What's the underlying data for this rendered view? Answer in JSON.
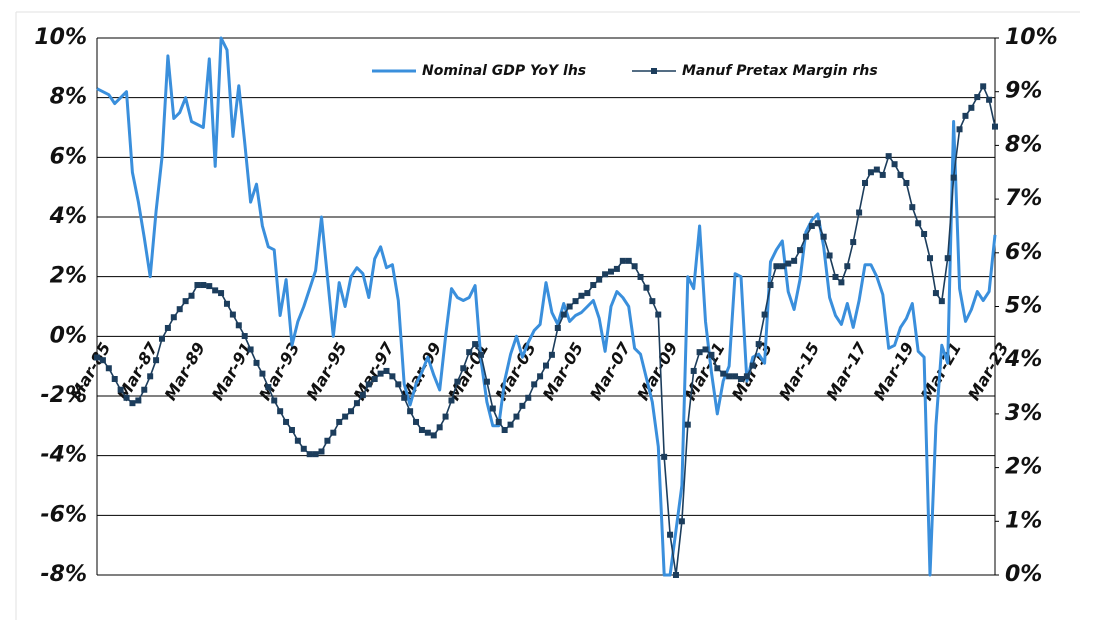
{
  "chart_data": {
    "type": "line",
    "categories": [
      "Mar-85",
      null,
      null,
      null,
      null,
      null,
      null,
      null,
      "Mar-87",
      null,
      null,
      null,
      null,
      null,
      null,
      null,
      "Mar-89",
      null,
      null,
      null,
      null,
      null,
      null,
      null,
      "Mar-91",
      null,
      null,
      null,
      null,
      null,
      null,
      null,
      "Mar-93",
      null,
      null,
      null,
      null,
      null,
      null,
      null,
      "Mar-95",
      null,
      null,
      null,
      null,
      null,
      null,
      null,
      "Mar-97",
      null,
      null,
      null,
      null,
      null,
      null,
      null,
      "Mar-99",
      null,
      null,
      null,
      null,
      null,
      null,
      null,
      "Mar-01",
      null,
      null,
      null,
      null,
      null,
      null,
      null,
      "Mar-03",
      null,
      null,
      null,
      null,
      null,
      null,
      null,
      "Mar-05",
      null,
      null,
      null,
      null,
      null,
      null,
      null,
      "Mar-07",
      null,
      null,
      null,
      null,
      null,
      null,
      null,
      "Mar-09",
      null,
      null,
      null,
      null,
      null,
      null,
      null,
      "Mar-11",
      null,
      null,
      null,
      null,
      null,
      null,
      null,
      "Mar-13",
      null,
      null,
      null,
      null,
      null,
      null,
      null,
      "Mar-15",
      null,
      null,
      null,
      null,
      null,
      null,
      null,
      "Mar-17",
      null,
      null,
      null,
      null,
      null,
      null,
      null,
      "Mar-19",
      null,
      null,
      null,
      null,
      null,
      null,
      null,
      "Mar-21",
      null,
      null,
      null,
      null,
      null,
      null,
      null,
      "Mar-23"
    ],
    "series": [
      {
        "name": "Nominal GDP YoY lhs",
        "color": "#3a8fdc",
        "axis": "y",
        "values": [
          8.3,
          8.2,
          8.1,
          7.8,
          8.0,
          8.2,
          5.5,
          4.5,
          3.3,
          2.0,
          4.2,
          6.0,
          9.4,
          7.3,
          7.5,
          8.0,
          7.2,
          7.1,
          7.0,
          9.3,
          5.7,
          10.0,
          9.6,
          6.7,
          8.4,
          6.5,
          4.5,
          5.1,
          3.7,
          3.0,
          2.9,
          0.7,
          1.9,
          -0.3,
          0.5,
          1.0,
          1.6,
          2.2,
          4.0,
          2.0,
          0.0,
          1.8,
          1.0,
          2.0,
          2.3,
          2.1,
          1.3,
          2.6,
          3.0,
          2.3,
          2.4,
          1.2,
          -1.6,
          -2.3,
          -1.6,
          -1.2,
          -0.7,
          -1.3,
          -1.8,
          0.0,
          1.6,
          1.3,
          1.2,
          1.3,
          1.7,
          -0.8,
          -2.2,
          -3.0,
          -3.0,
          -1.5,
          -0.6,
          0.0,
          -0.7,
          -0.2,
          0.2,
          0.4,
          1.8,
          0.8,
          0.4,
          1.1,
          0.5,
          0.7,
          0.8,
          1.0,
          1.2,
          0.6,
          -0.5,
          1.0,
          1.5,
          1.3,
          1.0,
          -0.4,
          -0.6,
          -1.4,
          -2.2,
          -3.7,
          -8.0,
          -8.0,
          -6.5,
          -5.0,
          2.0,
          1.6,
          3.7,
          0.5,
          -1.2,
          -2.6,
          -1.5,
          -1.0,
          2.1,
          2.0,
          -1.5,
          -0.7,
          -0.6,
          -0.9,
          2.5,
          2.9,
          3.2,
          1.5,
          0.9,
          1.9,
          3.5,
          3.9,
          4.1,
          3.0,
          1.3,
          0.7,
          0.4,
          1.1,
          0.3,
          1.2,
          2.4,
          2.4,
          2.0,
          1.4,
          -0.4,
          -0.3,
          0.3,
          0.6,
          1.1,
          -0.5,
          -0.7,
          -8.0,
          -3.0,
          -0.3,
          -0.9,
          7.2,
          1.6,
          0.5,
          0.9,
          1.5,
          1.2,
          1.5,
          3.4
        ]
      },
      {
        "name": "Manuf Pretax Margin rhs",
        "color": "#1c3d5c",
        "axis": "y2",
        "marker": "square",
        "values": [
          4.05,
          4.0,
          3.85,
          3.65,
          3.45,
          3.3,
          3.2,
          3.25,
          3.45,
          3.7,
          4.0,
          4.4,
          4.6,
          4.8,
          4.95,
          5.1,
          5.2,
          5.4,
          5.4,
          5.38,
          5.3,
          5.25,
          5.05,
          4.85,
          4.65,
          4.45,
          4.2,
          3.95,
          3.75,
          3.5,
          3.25,
          3.05,
          2.85,
          2.7,
          2.5,
          2.35,
          2.25,
          2.25,
          2.3,
          2.5,
          2.65,
          2.85,
          2.95,
          3.05,
          3.2,
          3.35,
          3.55,
          3.65,
          3.75,
          3.8,
          3.7,
          3.55,
          3.3,
          3.05,
          2.85,
          2.7,
          2.65,
          2.6,
          2.75,
          2.95,
          3.25,
          3.6,
          3.85,
          4.15,
          4.3,
          4.1,
          3.6,
          3.1,
          2.85,
          2.7,
          2.8,
          2.95,
          3.15,
          3.3,
          3.55,
          3.7,
          3.9,
          4.1,
          4.6,
          4.85,
          5.0,
          5.1,
          5.2,
          5.25,
          5.4,
          5.5,
          5.6,
          5.65,
          5.7,
          5.85,
          5.85,
          5.75,
          5.55,
          5.35,
          5.1,
          4.85,
          2.2,
          0.75,
          0.0,
          1.0,
          2.8,
          3.8,
          4.15,
          4.2,
          4.1,
          3.85,
          3.75,
          3.7,
          3.7,
          3.65,
          3.7,
          3.9,
          4.3,
          4.85,
          5.4,
          5.75,
          5.75,
          5.8,
          5.85,
          6.05,
          6.3,
          6.5,
          6.55,
          6.3,
          5.95,
          5.55,
          5.45,
          5.75,
          6.2,
          6.75,
          7.3,
          7.5,
          7.55,
          7.45,
          7.8,
          7.65,
          7.45,
          7.3,
          6.85,
          6.55,
          6.35,
          5.9,
          5.25,
          5.1,
          5.9,
          7.4,
          8.3,
          8.55,
          8.7,
          8.9,
          9.1,
          8.85,
          8.35
        ]
      }
    ],
    "ylim": [
      -8,
      10
    ],
    "yticks": [
      {
        "value": -8,
        "label": "-8%"
      },
      {
        "value": -6,
        "label": "-6%"
      },
      {
        "value": -4,
        "label": "-4%"
      },
      {
        "value": -2,
        "label": "-2%"
      },
      {
        "value": 0,
        "label": "0%"
      },
      {
        "value": 2,
        "label": "2%"
      },
      {
        "value": 4,
        "label": "4%"
      },
      {
        "value": 6,
        "label": "6%"
      },
      {
        "value": 8,
        "label": "8%"
      },
      {
        "value": 10,
        "label": "10%"
      }
    ],
    "y2lim": [
      0,
      10
    ],
    "y2ticks": [
      {
        "value": 0,
        "label": "0%"
      },
      {
        "value": 1,
        "label": "1%"
      },
      {
        "value": 2,
        "label": "2%"
      },
      {
        "value": 3,
        "label": "3%"
      },
      {
        "value": 4,
        "label": "4%"
      },
      {
        "value": 5,
        "label": "5%"
      },
      {
        "value": 6,
        "label": "6%"
      },
      {
        "value": 7,
        "label": "7%"
      },
      {
        "value": 8,
        "label": "8%"
      },
      {
        "value": 9,
        "label": "9%"
      },
      {
        "value": 10,
        "label": "10%"
      }
    ],
    "grid": true,
    "legend": "top"
  }
}
